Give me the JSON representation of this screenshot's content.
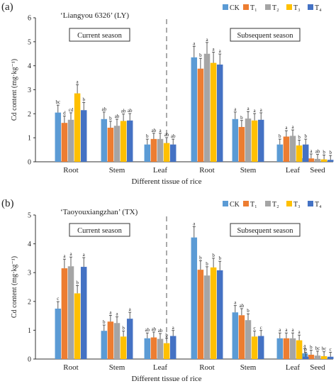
{
  "chart_data": [
    {
      "type": "bar",
      "panel_label": "(a)",
      "cultivar": "‘Liangyou 6326’ (LY)",
      "ylabel": "Cd content (mg·kg⁻¹)",
      "xlabel": "Different tissue of rice",
      "ylim": [
        0,
        6
      ],
      "yticks": [
        "0",
        "1",
        "2",
        "3",
        "4",
        "5",
        "6"
      ],
      "season_boxes": [
        "Current season",
        "Subsequent season"
      ],
      "legend": [
        "CK",
        "T₁",
        "T₂",
        "T₃",
        "T₄"
      ],
      "categories": [
        "Root",
        "Stem",
        "Leaf",
        "Root",
        "Stem",
        "Leaf",
        "Seed"
      ],
      "series": [
        {
          "name": "CK",
          "values": [
            2.05,
            1.78,
            0.72,
            4.35,
            1.78,
            0.72,
            0.15
          ],
          "labels": [
            "bc",
            "ab",
            "b",
            "a",
            "a",
            "b",
            "a"
          ]
        },
        {
          "name": "T₁",
          "values": [
            1.62,
            1.42,
            0.95,
            3.88,
            1.45,
            1.05,
            0.14
          ],
          "labels": [
            "d",
            "b",
            "ab",
            "b",
            "b",
            "a",
            "a"
          ]
        },
        {
          "name": "T₂",
          "values": [
            1.75,
            1.5,
            0.95,
            4.5,
            1.8,
            1.08,
            0.12
          ],
          "labels": [
            "cd",
            "ab",
            "a",
            "a",
            "a",
            "a",
            "ab"
          ]
        },
        {
          "name": "T₃",
          "values": [
            2.85,
            1.7,
            0.78,
            4.12,
            1.72,
            0.68,
            0.1
          ],
          "labels": [
            "a",
            "ab",
            "ab",
            "a",
            "a",
            "b",
            "b"
          ]
        },
        {
          "name": "T₄",
          "values": [
            2.15,
            1.72,
            0.72,
            4.05,
            1.75,
            0.72,
            0.08
          ],
          "labels": [
            "b",
            "ab",
            "ab",
            "a",
            "a",
            "b",
            "b"
          ]
        }
      ]
    },
    {
      "type": "bar",
      "panel_label": "(b)",
      "cultivar": "‘Taoyouxiangzhan’ (TX)",
      "ylabel": "Cd content (mg·kg⁻¹)",
      "xlabel": "Different tissue of rice",
      "ylim": [
        0,
        5
      ],
      "yticks": [
        "0",
        "1",
        "2",
        "3",
        "4",
        "5"
      ],
      "season_boxes": [
        "Current season",
        "Subsequent season"
      ],
      "legend": [
        "CK",
        "T₁",
        "T₂",
        "T₃",
        "T₄"
      ],
      "categories": [
        "Root",
        "Stem",
        "Leaf",
        "Root",
        "Stem",
        "Leaf",
        "Seed"
      ],
      "series": [
        {
          "name": "CK",
          "values": [
            1.75,
            0.98,
            0.72,
            4.22,
            1.62,
            0.72,
            0.2
          ],
          "labels": [
            "c",
            "b",
            "ab",
            "a",
            "a",
            "a",
            "a"
          ]
        },
        {
          "name": "T₁",
          "values": [
            3.15,
            1.3,
            0.75,
            3.1,
            1.52,
            0.72,
            0.15
          ],
          "labels": [
            "a",
            "a",
            "ab",
            "b",
            "ab",
            "a",
            "b"
          ]
        },
        {
          "name": "T₂",
          "values": [
            3.22,
            1.25,
            0.7,
            2.9,
            1.35,
            0.72,
            0.12
          ],
          "labels": [
            "a",
            "a",
            "ab",
            "b",
            "b",
            "a",
            "bc"
          ]
        },
        {
          "name": "T₃",
          "values": [
            2.28,
            0.78,
            0.55,
            3.18,
            0.78,
            0.65,
            0.1
          ],
          "labels": [
            "b",
            "b",
            "b",
            "b",
            "c",
            "a",
            "bc"
          ]
        },
        {
          "name": "T₄",
          "values": [
            3.2,
            1.4,
            0.8,
            3.08,
            0.8,
            0.08,
            0.08
          ],
          "labels": [
            "a",
            "a",
            "a",
            "b",
            "c",
            "b",
            "c"
          ]
        }
      ]
    }
  ]
}
